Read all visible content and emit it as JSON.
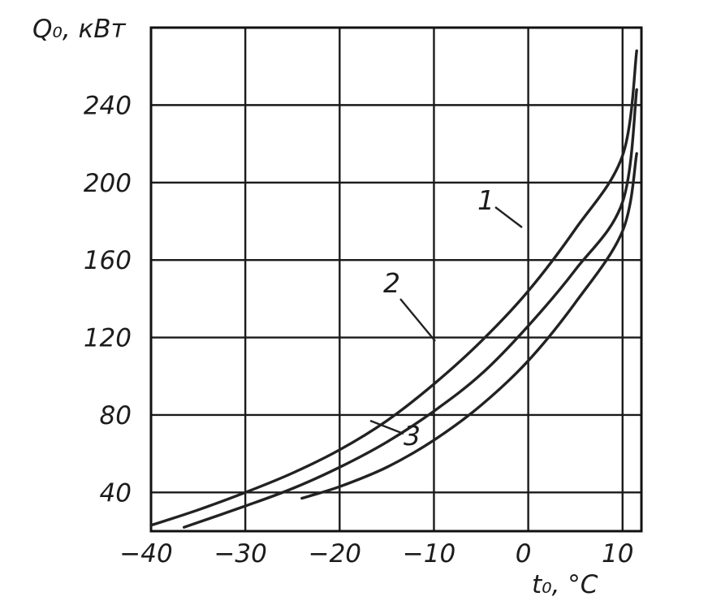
{
  "chart_data": {
    "type": "line",
    "title": "",
    "ylabel": "Q₀, кВт",
    "xlabel": "t₀, °C",
    "xlim": [
      -40,
      12
    ],
    "ylim": [
      20,
      280
    ],
    "grid": true,
    "x_ticks": [
      -40,
      -30,
      -20,
      -10,
      0,
      10
    ],
    "y_ticks": [
      40,
      80,
      120,
      160,
      200,
      240
    ],
    "x_tick_labels": [
      "−40",
      "−30",
      "−20",
      "−10",
      "0",
      "10"
    ],
    "y_tick_labels": [
      "40",
      "80",
      "120",
      "160",
      "200",
      "240"
    ],
    "series": [
      {
        "name": "1",
        "x": [
          -40,
          -35,
          -30,
          -25,
          -20,
          -15,
          -10,
          -5,
          0,
          5,
          10,
          11.5
        ],
        "y": [
          23,
          31,
          40,
          50,
          62,
          77,
          96,
          118,
          144,
          176,
          214,
          268
        ]
      },
      {
        "name": "2",
        "x": [
          -36.5,
          -30,
          -25,
          -20,
          -15,
          -10,
          -5,
          0,
          5,
          10,
          11.5
        ],
        "y": [
          22,
          33,
          42,
          53,
          66,
          82,
          101,
          126,
          155,
          190,
          248
        ]
      },
      {
        "name": "3",
        "x": [
          -24,
          -20,
          -15,
          -10,
          -5,
          0,
          5,
          10,
          11.5
        ],
        "y": [
          37,
          43,
          53,
          67,
          85,
          108,
          138,
          175,
          215
        ]
      }
    ]
  }
}
